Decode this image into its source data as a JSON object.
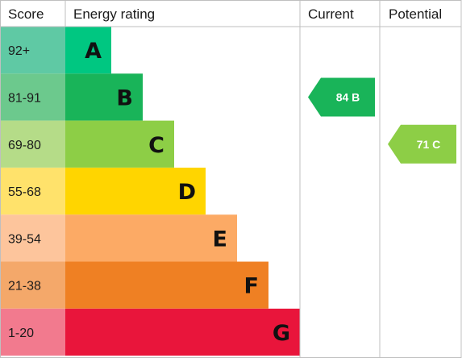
{
  "chart_data": {
    "type": "bar",
    "headers": {
      "score": "Score",
      "rating": "Energy rating",
      "current": "Current",
      "potential": "Potential"
    },
    "bands": [
      {
        "letter": "A",
        "range": "92+",
        "bar_color": "#00c781",
        "score_color": "#5fc9a4",
        "relative_length": 1
      },
      {
        "letter": "B",
        "range": "81-91",
        "bar_color": "#19b459",
        "score_color": "#6cc98d",
        "relative_length": 2
      },
      {
        "letter": "C",
        "range": "69-80",
        "bar_color": "#8dce46",
        "score_color": "#b5dc88",
        "relative_length": 3
      },
      {
        "letter": "D",
        "range": "55-68",
        "bar_color": "#ffd500",
        "score_color": "#ffe26b",
        "relative_length": 4
      },
      {
        "letter": "E",
        "range": "39-54",
        "bar_color": "#fcaa65",
        "score_color": "#fdc59c",
        "relative_length": 5
      },
      {
        "letter": "F",
        "range": "21-38",
        "bar_color": "#ef8023",
        "score_color": "#f4a86a",
        "relative_length": 6
      },
      {
        "letter": "G",
        "range": "1-20",
        "bar_color": "#e9153b",
        "score_color": "#f27a8e",
        "relative_length": 7
      }
    ],
    "current": {
      "score": 84,
      "band": "B",
      "label": "84 B",
      "color": "#19b459"
    },
    "potential": {
      "score": 71,
      "band": "C",
      "label": "71 C",
      "color": "#8dce46"
    },
    "grid_color": "#bfbfbf"
  }
}
